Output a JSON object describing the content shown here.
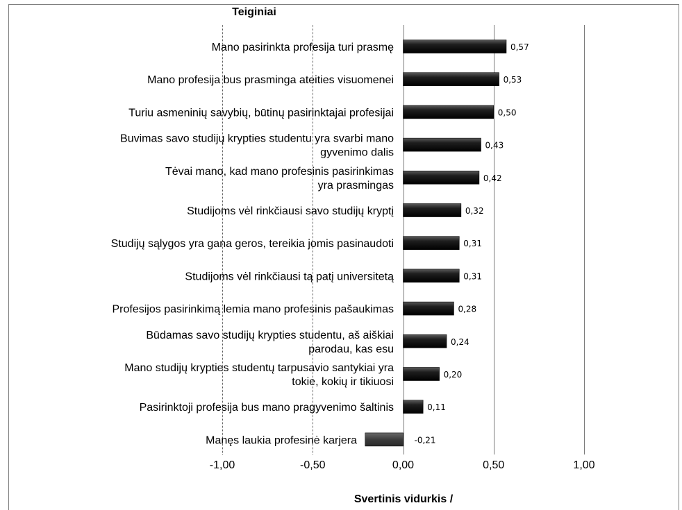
{
  "chart_data": {
    "type": "bar",
    "orientation": "horizontal",
    "title": "Teiginiai",
    "xlabel": "Svertinis vidurkis /",
    "xlim": [
      -1.0,
      1.0
    ],
    "xticks": [
      "-1,00",
      "-0,50",
      "0,00",
      "0,50",
      "1,00"
    ],
    "xtick_values": [
      -1.0,
      -0.5,
      0.0,
      0.5,
      1.0
    ],
    "grid": true,
    "categories": [
      [
        "Mano pasirinkta profesija turi prasmę"
      ],
      [
        "Mano profesija bus prasminga ateities visuomenei"
      ],
      [
        "Turiu asmeninių savybių, būtinų pasirinktajai profesijai"
      ],
      [
        "Buvimas savo studijų krypties studentu yra svarbi mano",
        "gyvenimo dalis"
      ],
      [
        "Tėvai mano, kad mano profesinis pasirinkimas",
        "yra prasmingas"
      ],
      [
        "Studijoms vėl rinkčiausi savo studijų kryptį"
      ],
      [
        "Studijų sąlygos yra gana geros, tereikia jomis pasinaudoti"
      ],
      [
        "Studijoms vėl rinkčiausi tą patį universitetą"
      ],
      [
        "Profesijos pasirinkimą lemia mano profesinis pašaukimas"
      ],
      [
        "Būdamas savo studijų krypties studentu, aš aiškiai",
        "parodau, kas esu"
      ],
      [
        "Mano studijų krypties studentų tarpusavio santykiai yra",
        "tokie, kokių ir tikiuosi"
      ],
      [
        "Pasirinktoji profesija bus mano pragyvenimo šaltinis"
      ],
      [
        "Manęs laukia profesinė karjera"
      ]
    ],
    "values": [
      0.57,
      0.53,
      0.5,
      0.43,
      0.42,
      0.32,
      0.31,
      0.31,
      0.28,
      0.24,
      0.2,
      0.11,
      -0.21
    ],
    "value_labels": [
      "0,57",
      "0,53",
      "0,50",
      "0,43",
      "0,42",
      "0,32",
      "0,31",
      "0,31",
      "0,28",
      "0,24",
      "0,20",
      "0,11",
      "-0,21"
    ],
    "bar_color": "#1a1a1a",
    "negative_bar_color": "#3a3a3a"
  }
}
